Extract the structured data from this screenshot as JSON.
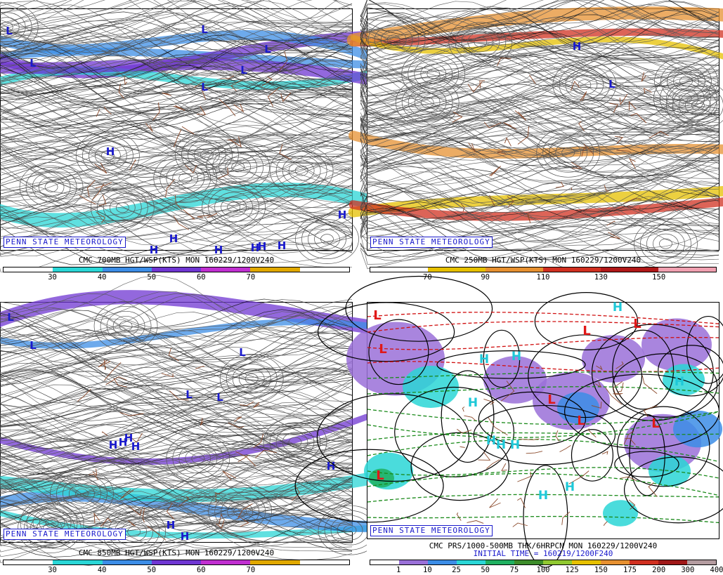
{
  "credit": "PENN STATE METEOROLOGY",
  "panels": [
    {
      "id": "700mb",
      "title": "CMC 700MB HGT/WSP(KTS) MON 160229/1200V240",
      "subtitle": "",
      "legend_colors": [
        "#ffffff",
        "#2ad6d6",
        "#3c8de6",
        "#6f36d2",
        "#c02fd0",
        "#e0a800",
        "#ffffff"
      ],
      "legend_ticks": [
        "30",
        "40",
        "50",
        "60",
        "70"
      ],
      "highs": [
        [
          156,
          208
        ],
        [
          486,
          298
        ],
        [
          218,
          348
        ],
        [
          246,
          332
        ],
        [
          310,
          348
        ],
        [
          362,
          345
        ],
        [
          372,
          343
        ],
        [
          400,
          342
        ]
      ],
      "lows": [
        [
          12,
          36
        ],
        [
          46,
          82
        ],
        [
          290,
          34
        ],
        [
          380,
          62
        ],
        [
          346,
          92
        ],
        [
          290,
          116
        ]
      ]
    },
    {
      "id": "250mb",
      "title": "CMC 250MB HGT/WSP(KTS) MON 160229/1200V240",
      "subtitle": "",
      "legend_colors": [
        "#ffffff",
        "#e6c000",
        "#e69030",
        "#d03020",
        "#b01818",
        "#f0a0b0"
      ],
      "legend_ticks": [
        "70",
        "90",
        "110",
        "130",
        "150"
      ],
      "highs": [
        [
          298,
          58
        ]
      ],
      "lows": [
        [
          348,
          112
        ]
      ]
    },
    {
      "id": "850mb",
      "title": "CMC 850MB HGT/WSP(KTS) MON 160229/1200V240",
      "subtitle": "",
      "legend_colors": [
        "#ffffff",
        "#2ad6d6",
        "#3c8de6",
        "#6f36d2",
        "#c02fd0",
        "#e0a800",
        "#ffffff"
      ],
      "legend_ticks": [
        "30",
        "40",
        "50",
        "60",
        "70"
      ],
      "highs": [
        [
          160,
          208
        ],
        [
          174,
          204
        ],
        [
          182,
          198
        ],
        [
          192,
          210
        ],
        [
          242,
          322
        ],
        [
          262,
          338
        ],
        [
          470,
          238
        ]
      ],
      "lows": [
        [
          14,
          26
        ],
        [
          46,
          66
        ],
        [
          344,
          76
        ],
        [
          268,
          136
        ],
        [
          312,
          140
        ]
      ]
    },
    {
      "id": "prs",
      "title": "CMC PRS/1000-500MB THK/6HRPCN MON 160229/1200V240",
      "subtitle": "INITIAL TIME = 160219/1200F240",
      "legend_colors": [
        "#ffffff",
        "#9a70d8",
        "#3c8de6",
        "#2ad6d6",
        "#1fb060",
        "#3c8c2a",
        "#90c830",
        "#e6c000",
        "#e69030",
        "#d03020",
        "#a01818",
        "#b49ca0"
      ],
      "legend_ticks": [
        "1",
        "10",
        "25",
        "50",
        "75",
        "100",
        "125",
        "150",
        "175",
        "200",
        "300",
        "400"
      ],
      "highs": [
        [
          166,
          86
        ],
        [
          212,
          82
        ],
        [
          150,
          148
        ],
        [
          176,
          202
        ],
        [
          190,
          208
        ],
        [
          210,
          208
        ],
        [
          250,
          280
        ],
        [
          288,
          268
        ],
        [
          356,
          12
        ],
        [
          444,
          118
        ]
      ],
      "lows": [
        [
          14,
          24
        ],
        [
          22,
          72
        ],
        [
          312,
          46
        ],
        [
          384,
          36
        ],
        [
          262,
          144
        ],
        [
          304,
          174
        ],
        [
          410,
          178
        ],
        [
          18,
          252
        ]
      ]
    }
  ]
}
